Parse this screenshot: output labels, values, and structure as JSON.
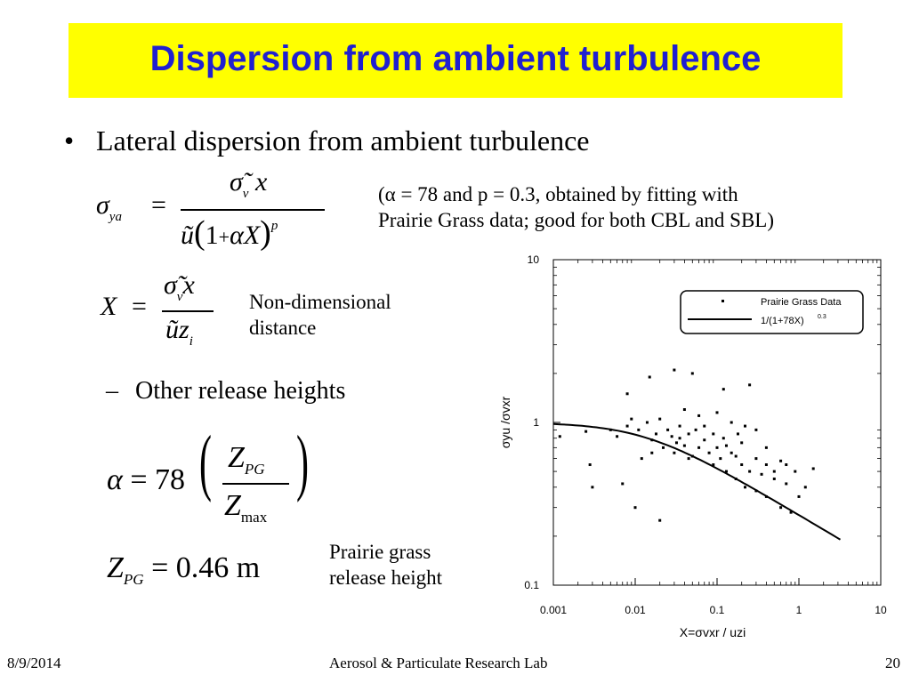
{
  "title": "Dispersion from ambient turbulence",
  "bullet": "Lateral dispersion from ambient turbulence",
  "sub_bullet": "Other release heights",
  "alpha_note_line1": "(α = 78 and p = 0.3, obtained by fitting with",
  "alpha_note_line2": "Prairie Grass data; good for both CBL and SBL)",
  "nondim_line1": "Non-dimensional",
  "nondim_line2": "distance",
  "prairie_line1": "Prairie grass",
  "prairie_line2": "release height",
  "footer": {
    "date": "8/9/2014",
    "lab": "Aerosol & Particulate Research Lab",
    "page": "20"
  },
  "chart_data": {
    "type": "scatter",
    "xscale": "log",
    "yscale": "log",
    "xlim": [
      0.001,
      10
    ],
    "ylim": [
      0.1,
      10
    ],
    "xticks": [
      "0.001",
      "0.01",
      "0.1",
      "1",
      "10"
    ],
    "yticks": [
      "0.1",
      "1",
      "10"
    ],
    "xlabel": "X=σvxr / uzi",
    "ylabel": "σyu /σvxr",
    "legend": {
      "position": "top-right",
      "points_label": "Prairie Grass Data",
      "line_label": "1/(1+78X)",
      "line_label_exp": "0.3"
    },
    "curve": {
      "alpha": 78,
      "p": 0.3,
      "x_range": [
        0.001,
        3.2
      ]
    },
    "points": [
      [
        0.0012,
        0.82
      ],
      [
        0.0025,
        0.88
      ],
      [
        0.0028,
        0.55
      ],
      [
        0.003,
        0.4
      ],
      [
        0.005,
        0.9
      ],
      [
        0.006,
        0.82
      ],
      [
        0.007,
        0.42
      ],
      [
        0.008,
        0.95
      ],
      [
        0.009,
        1.05
      ],
      [
        0.01,
        0.3
      ],
      [
        0.011,
        0.9
      ],
      [
        0.012,
        0.6
      ],
      [
        0.014,
        1.0
      ],
      [
        0.016,
        0.78
      ],
      [
        0.018,
        0.85
      ],
      [
        0.02,
        0.25
      ],
      [
        0.022,
        0.7
      ],
      [
        0.025,
        0.9
      ],
      [
        0.028,
        0.82
      ],
      [
        0.03,
        0.65
      ],
      [
        0.032,
        0.75
      ],
      [
        0.035,
        0.8
      ],
      [
        0.04,
        0.72
      ],
      [
        0.045,
        0.85
      ],
      [
        0.05,
        0.62
      ],
      [
        0.055,
        0.9
      ],
      [
        0.06,
        0.7
      ],
      [
        0.07,
        0.78
      ],
      [
        0.08,
        0.65
      ],
      [
        0.09,
        0.55
      ],
      [
        0.1,
        0.7
      ],
      [
        0.11,
        0.6
      ],
      [
        0.12,
        0.8
      ],
      [
        0.13,
        0.5
      ],
      [
        0.15,
        0.65
      ],
      [
        0.17,
        0.45
      ],
      [
        0.2,
        0.55
      ],
      [
        0.22,
        0.4
      ],
      [
        0.25,
        0.5
      ],
      [
        0.3,
        0.38
      ],
      [
        0.35,
        0.48
      ],
      [
        0.4,
        0.35
      ],
      [
        0.5,
        0.45
      ],
      [
        0.6,
        0.3
      ],
      [
        0.7,
        0.42
      ],
      [
        0.8,
        0.28
      ],
      [
        1.0,
        0.35
      ],
      [
        1.2,
        0.4
      ],
      [
        0.2,
        0.75
      ],
      [
        0.3,
        0.6
      ],
      [
        0.4,
        0.55
      ],
      [
        0.5,
        0.5
      ],
      [
        0.015,
        1.9
      ],
      [
        0.03,
        2.1
      ],
      [
        0.05,
        2.0
      ],
      [
        0.008,
        1.5
      ],
      [
        0.12,
        1.6
      ],
      [
        0.25,
        1.7
      ],
      [
        0.1,
        1.15
      ],
      [
        0.06,
        1.1
      ],
      [
        0.04,
        1.2
      ],
      [
        0.02,
        1.05
      ],
      [
        0.15,
        1.0
      ],
      [
        0.3,
        0.9
      ],
      [
        0.18,
        0.85
      ],
      [
        0.22,
        0.95
      ],
      [
        0.7,
        0.55
      ],
      [
        0.9,
        0.5
      ],
      [
        1.5,
        0.52
      ],
      [
        0.035,
        0.95
      ],
      [
        0.07,
        0.95
      ],
      [
        0.09,
        0.85
      ],
      [
        0.016,
        0.65
      ],
      [
        0.045,
        0.6
      ],
      [
        0.13,
        0.72
      ],
      [
        0.17,
        0.62
      ],
      [
        0.4,
        0.7
      ],
      [
        0.6,
        0.58
      ]
    ]
  }
}
